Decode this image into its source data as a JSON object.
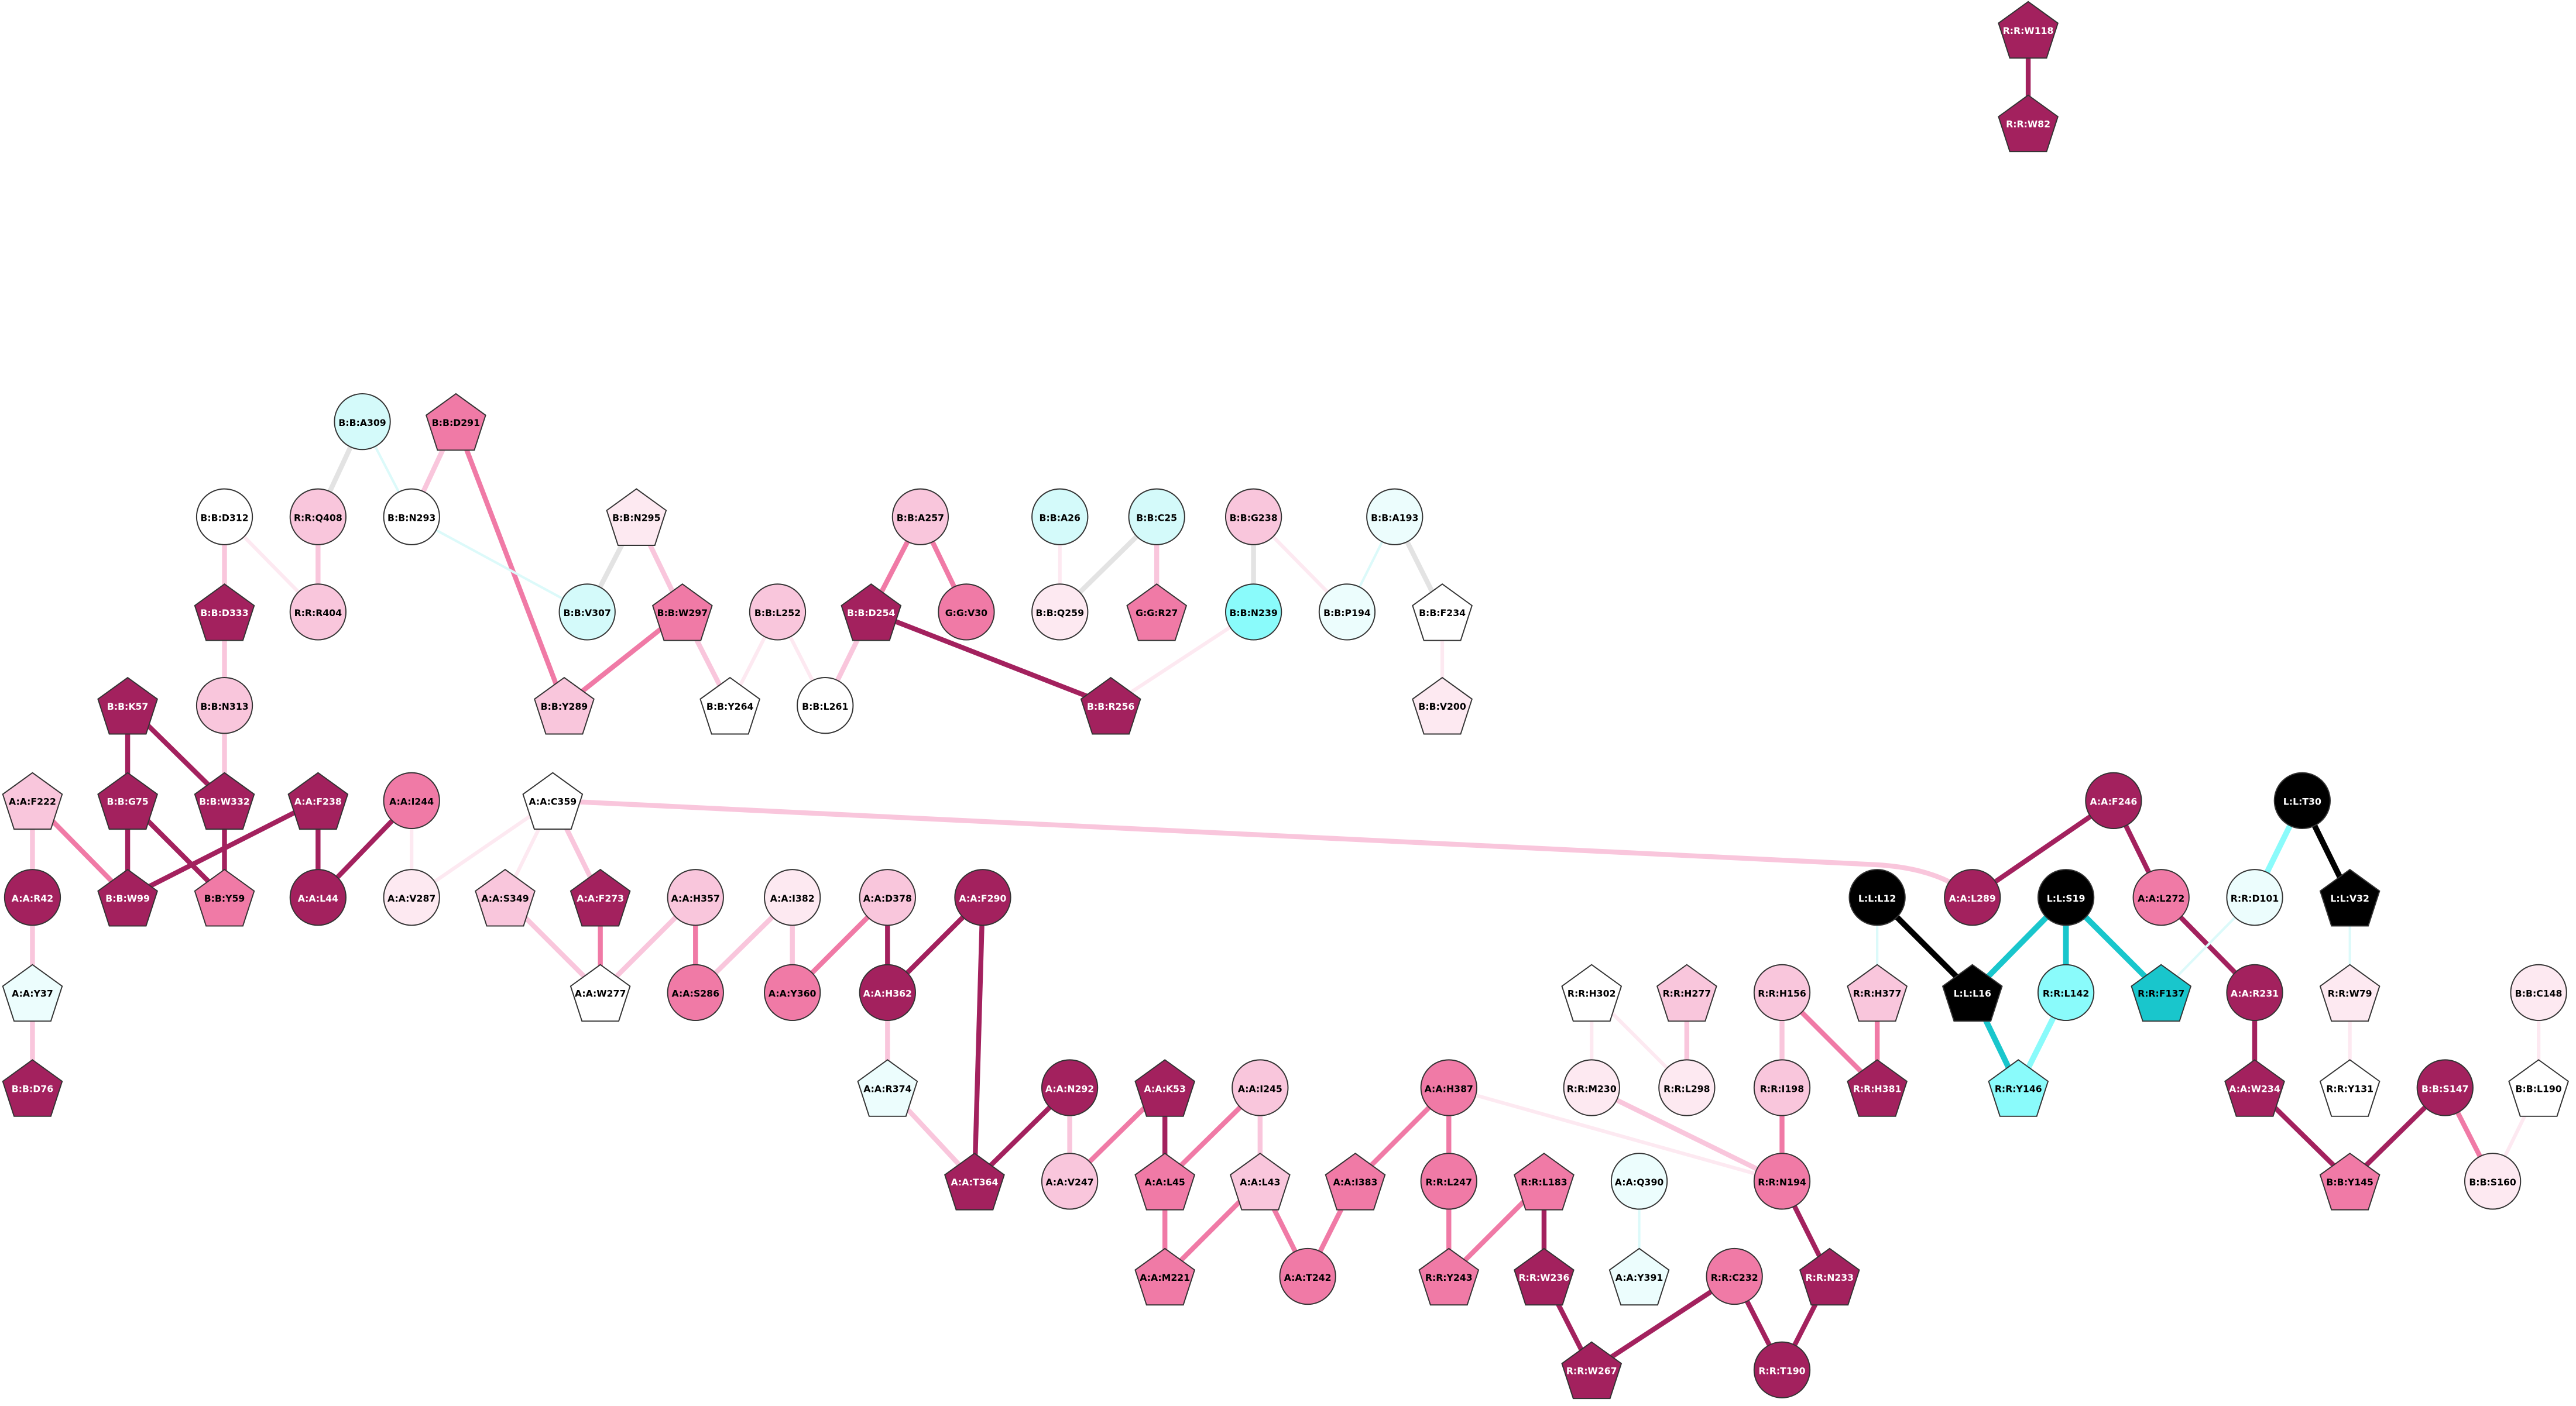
{
  "nodes": [
    {
      "label": "R:R:W118"
    },
    {
      "label": "R:R:W82"
    },
    {
      "label": "B:B:A309"
    },
    {
      "label": "B:B:D291"
    },
    {
      "label": "B:B:D312"
    },
    {
      "label": "R:R:Q408"
    },
    {
      "label": "B:B:N293"
    },
    {
      "label": "B:B:N295"
    },
    {
      "label": "B:B:A257"
    },
    {
      "label": "B:B:A26"
    },
    {
      "label": "B:B:C25"
    },
    {
      "label": "B:B:G238"
    },
    {
      "label": "B:B:A193"
    },
    {
      "label": "B:B:D333"
    },
    {
      "label": "R:R:R404"
    },
    {
      "label": "B:B:V307"
    },
    {
      "label": "B:B:W297"
    },
    {
      "label": "B:B:L252"
    },
    {
      "label": "B:B:D254"
    },
    {
      "label": "G:G:V30"
    },
    {
      "label": "B:B:Q259"
    },
    {
      "label": "G:G:R27"
    },
    {
      "label": "B:B:N239"
    },
    {
      "label": "B:B:P194"
    },
    {
      "label": "B:B:F234"
    },
    {
      "label": "B:B:K57"
    },
    {
      "label": "B:B:N313"
    },
    {
      "label": "B:B:Y289"
    },
    {
      "label": "B:B:Y264"
    },
    {
      "label": "B:B:L261"
    },
    {
      "label": "B:B:R256"
    },
    {
      "label": "B:B:V200"
    },
    {
      "label": "A:A:F222"
    },
    {
      "label": "B:B:G75"
    },
    {
      "label": "B:B:W332"
    },
    {
      "label": "A:A:F238"
    },
    {
      "label": "A:A:I244"
    },
    {
      "label": "A:A:C359"
    },
    {
      "label": "A:A:F246"
    },
    {
      "label": "L:L:T30"
    },
    {
      "label": "A:A:R42"
    },
    {
      "label": "B:B:W99"
    },
    {
      "label": "B:B:Y59"
    },
    {
      "label": "A:A:L44"
    },
    {
      "label": "A:A:V287"
    },
    {
      "label": "A:A:S349"
    },
    {
      "label": "A:A:F273"
    },
    {
      "label": "A:A:H357"
    },
    {
      "label": "A:A:I382"
    },
    {
      "label": "A:A:D378"
    },
    {
      "label": "A:A:F290"
    },
    {
      "label": "L:L:L12"
    },
    {
      "label": "A:A:L289"
    },
    {
      "label": "L:L:S19"
    },
    {
      "label": "A:A:L272"
    },
    {
      "label": "R:R:D101"
    },
    {
      "label": "L:L:V32"
    },
    {
      "label": "A:A:Y37"
    },
    {
      "label": "A:A:W277"
    },
    {
      "label": "A:A:S286"
    },
    {
      "label": "A:A:Y360"
    },
    {
      "label": "A:A:H362"
    },
    {
      "label": "R:R:H302"
    },
    {
      "label": "R:R:H277"
    },
    {
      "label": "R:R:H156"
    },
    {
      "label": "R:R:H377"
    },
    {
      "label": "L:L:L16"
    },
    {
      "label": "R:R:L142"
    },
    {
      "label": "R:R:F137"
    },
    {
      "label": "A:A:R231"
    },
    {
      "label": "R:R:W79"
    },
    {
      "label": "B:B:C148"
    },
    {
      "label": "B:B:D76"
    },
    {
      "label": "A:A:R374"
    },
    {
      "label": "R:R:M230"
    },
    {
      "label": "R:R:L298"
    },
    {
      "label": "R:R:I198"
    },
    {
      "label": "R:R:H381"
    },
    {
      "label": "R:R:Y146"
    },
    {
      "label": "A:A:W234"
    },
    {
      "label": "R:R:Y131"
    },
    {
      "label": "B:B:S147"
    },
    {
      "label": "B:B:L190"
    },
    {
      "label": "A:A:N292"
    },
    {
      "label": "A:A:K53"
    },
    {
      "label": "A:A:I245"
    },
    {
      "label": "A:A:H387"
    },
    {
      "label": "A:A:T364"
    },
    {
      "label": "A:A:V247"
    },
    {
      "label": "A:A:L45"
    },
    {
      "label": "A:A:L43"
    },
    {
      "label": "A:A:I383"
    },
    {
      "label": "R:R:L247"
    },
    {
      "label": "R:R:L183"
    },
    {
      "label": "A:A:Q390"
    },
    {
      "label": "R:R:N194"
    },
    {
      "label": "B:B:Y145"
    },
    {
      "label": "B:B:S160"
    },
    {
      "label": "A:A:M221"
    },
    {
      "label": "A:A:T242"
    },
    {
      "label": "R:R:Y243"
    },
    {
      "label": "R:R:W236"
    },
    {
      "label": "A:A:Y391"
    },
    {
      "label": "R:R:C232"
    },
    {
      "label": "R:R:N233"
    },
    {
      "label": "R:R:W267"
    },
    {
      "label": "R:R:T190"
    }
  ]
}
